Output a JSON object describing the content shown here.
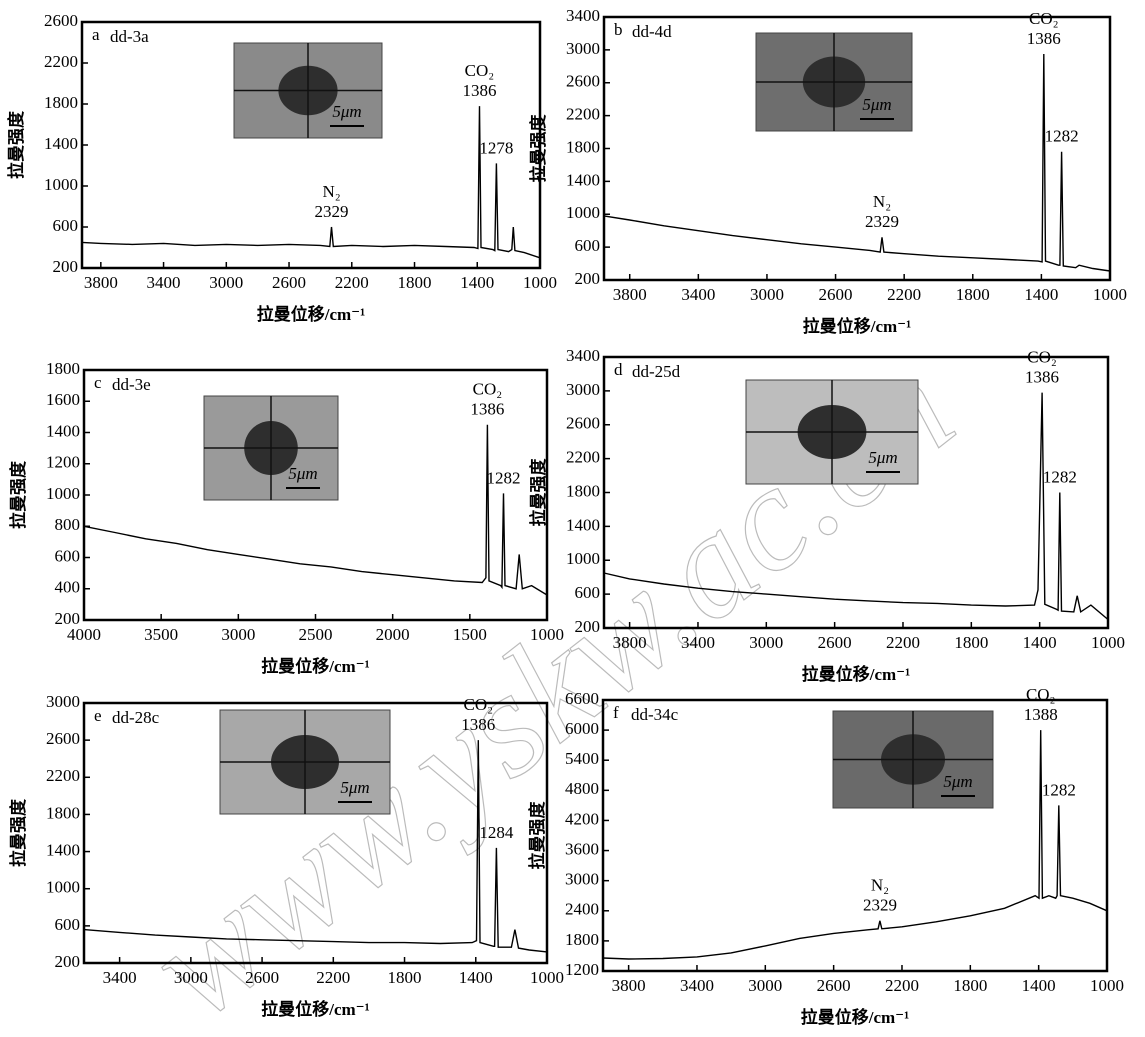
{
  "watermark": "www.yskw.ac.cn",
  "chart_data": [
    {
      "type": "line",
      "label": "a",
      "sample": "dd-3a",
      "scale_bar": "5μm",
      "x_label": "拉曼位移/cm⁻¹",
      "y_label": "拉曼强度",
      "color": "#000000",
      "xlim": [
        3920,
        1000
      ],
      "xticks": [
        3800,
        3400,
        3000,
        2600,
        2200,
        1800,
        1400,
        1000
      ],
      "ylim": [
        200,
        2600
      ],
      "yticks": [
        200,
        600,
        1000,
        1400,
        1800,
        2200,
        2600
      ],
      "x": [
        3920,
        3800,
        3600,
        3400,
        3200,
        3000,
        2800,
        2600,
        2400,
        2340,
        2329,
        2318,
        2200,
        2000,
        1800,
        1600,
        1420,
        1396,
        1386,
        1376,
        1300,
        1288,
        1278,
        1268,
        1200,
        1180,
        1170,
        1160,
        1100,
        1000
      ],
      "values": [
        450,
        440,
        430,
        440,
        420,
        430,
        420,
        430,
        420,
        410,
        600,
        410,
        420,
        410,
        420,
        410,
        400,
        390,
        1780,
        400,
        380,
        370,
        1220,
        380,
        360,
        380,
        600,
        370,
        350,
        300
      ],
      "peaks": [
        {
          "name": "N₂",
          "value": 2329
        },
        {
          "name": "CO₂",
          "value": 1386
        },
        {
          "value": 1278
        }
      ]
    },
    {
      "type": "line",
      "label": "b",
      "sample": "dd-4d",
      "scale_bar": "5μm",
      "x_label": "拉曼位移/cm⁻¹",
      "y_label": "拉曼强度",
      "color": "#000000",
      "xlim": [
        3950,
        1000
      ],
      "xticks": [
        3800,
        3400,
        3000,
        2600,
        2200,
        1800,
        1400,
        1000
      ],
      "ylim": [
        200,
        3400
      ],
      "yticks": [
        200,
        600,
        1000,
        1400,
        1800,
        2200,
        2600,
        3000,
        3400
      ],
      "x": [
        3950,
        3800,
        3600,
        3400,
        3200,
        3000,
        2800,
        2600,
        2400,
        2340,
        2329,
        2318,
        2200,
        2000,
        1800,
        1600,
        1420,
        1396,
        1386,
        1376,
        1300,
        1292,
        1282,
        1272,
        1200,
        1180,
        1100,
        1000
      ],
      "values": [
        980,
        930,
        860,
        800,
        740,
        690,
        640,
        600,
        560,
        540,
        720,
        540,
        520,
        490,
        470,
        450,
        430,
        420,
        2950,
        430,
        380,
        380,
        1760,
        370,
        350,
        380,
        340,
        310
      ],
      "peaks": [
        {
          "name": "N₂",
          "value": 2329
        },
        {
          "name": "CO₂",
          "value": 1386
        },
        {
          "value": 1282
        }
      ]
    },
    {
      "type": "line",
      "label": "c",
      "sample": "dd-3e",
      "scale_bar": "5μm",
      "x_label": "拉曼位移/cm⁻¹",
      "y_label": "拉曼强度",
      "color": "#000000",
      "xlim": [
        4000,
        1000
      ],
      "xticks": [
        4000,
        3500,
        3000,
        2500,
        2000,
        1500,
        1000
      ],
      "ylim": [
        200,
        1800
      ],
      "yticks": [
        200,
        400,
        600,
        800,
        1000,
        1200,
        1400,
        1600,
        1800
      ],
      "x": [
        4000,
        3800,
        3600,
        3400,
        3200,
        3000,
        2800,
        2600,
        2400,
        2200,
        2000,
        1800,
        1600,
        1420,
        1396,
        1386,
        1376,
        1300,
        1292,
        1282,
        1272,
        1200,
        1180,
        1160,
        1100,
        1000
      ],
      "values": [
        800,
        760,
        720,
        690,
        650,
        620,
        590,
        560,
        540,
        510,
        490,
        470,
        450,
        440,
        470,
        1450,
        450,
        420,
        410,
        1010,
        420,
        400,
        620,
        400,
        420,
        360
      ],
      "peaks": [
        {
          "name": "CO₂",
          "value": 1386
        },
        {
          "value": 1282
        }
      ]
    },
    {
      "type": "line",
      "label": "d",
      "sample": "dd-25d",
      "scale_bar": "5μm",
      "x_label": "拉曼位移/cm⁻¹",
      "y_label": "拉曼强度",
      "color": "#000000",
      "xlim": [
        3950,
        1000
      ],
      "xticks": [
        3800,
        3400,
        3000,
        2600,
        2200,
        1800,
        1400,
        1000
      ],
      "ylim": [
        200,
        3400
      ],
      "yticks": [
        200,
        600,
        1000,
        1400,
        1800,
        2200,
        2600,
        3000,
        3400
      ],
      "x": [
        3950,
        3800,
        3600,
        3400,
        3200,
        3000,
        2800,
        2600,
        2400,
        2200,
        2000,
        1800,
        1600,
        1430,
        1410,
        1386,
        1370,
        1300,
        1292,
        1282,
        1272,
        1200,
        1180,
        1160,
        1100,
        1000
      ],
      "values": [
        850,
        780,
        720,
        670,
        630,
        600,
        570,
        540,
        520,
        500,
        490,
        470,
        460,
        470,
        650,
        2980,
        480,
        420,
        410,
        1800,
        400,
        390,
        580,
        390,
        470,
        300
      ],
      "peaks": [
        {
          "name": "CO₂",
          "value": 1386
        },
        {
          "value": 1282
        }
      ]
    },
    {
      "type": "line",
      "label": "e",
      "sample": "dd-28c",
      "scale_bar": "5μm",
      "x_label": "拉曼位移/cm⁻¹",
      "y_label": "拉曼强度",
      "color": "#000000",
      "xlim": [
        3600,
        1000
      ],
      "xticks": [
        3400,
        3000,
        2600,
        2200,
        1800,
        1400,
        1000
      ],
      "ylim": [
        200,
        3000
      ],
      "yticks": [
        200,
        600,
        1000,
        1400,
        1800,
        2200,
        2600,
        3000
      ],
      "x": [
        3600,
        3400,
        3200,
        3000,
        2800,
        2600,
        2400,
        2200,
        2000,
        1800,
        1600,
        1420,
        1396,
        1386,
        1376,
        1300,
        1294,
        1284,
        1274,
        1200,
        1180,
        1160,
        1100,
        1000
      ],
      "values": [
        560,
        530,
        500,
        480,
        460,
        450,
        440,
        430,
        420,
        420,
        410,
        420,
        440,
        2600,
        420,
        380,
        380,
        1440,
        370,
        370,
        560,
        360,
        340,
        320
      ],
      "peaks": [
        {
          "name": "CO₂",
          "value": 1386
        },
        {
          "value": 1284
        }
      ]
    },
    {
      "type": "line",
      "label": "f",
      "sample": "dd-34c",
      "scale_bar": "5μm",
      "x_label": "拉曼位移/cm⁻¹",
      "y_label": "拉曼强度",
      "color": "#000000",
      "xlim": [
        3950,
        1000
      ],
      "xticks": [
        3800,
        3400,
        3000,
        2600,
        2200,
        1800,
        1400,
        1000
      ],
      "ylim": [
        1200,
        6600
      ],
      "yticks": [
        1200,
        1800,
        2400,
        3000,
        3600,
        4200,
        4800,
        5400,
        6000,
        6600
      ],
      "x": [
        3950,
        3800,
        3600,
        3400,
        3200,
        3000,
        2800,
        2600,
        2400,
        2340,
        2329,
        2318,
        2200,
        2000,
        1800,
        1600,
        1420,
        1398,
        1388,
        1378,
        1340,
        1300,
        1292,
        1282,
        1272,
        1200,
        1100,
        1000
      ],
      "values": [
        1460,
        1440,
        1450,
        1480,
        1560,
        1700,
        1850,
        1950,
        2020,
        2040,
        2200,
        2040,
        2080,
        2180,
        2300,
        2450,
        2700,
        2650,
        6000,
        2650,
        2700,
        2650,
        2700,
        4500,
        2700,
        2650,
        2550,
        2400
      ],
      "peaks": [
        {
          "name": "N₂",
          "value": 2329
        },
        {
          "name": "CO₂",
          "value": 1388
        },
        {
          "value": 1282
        }
      ]
    }
  ]
}
